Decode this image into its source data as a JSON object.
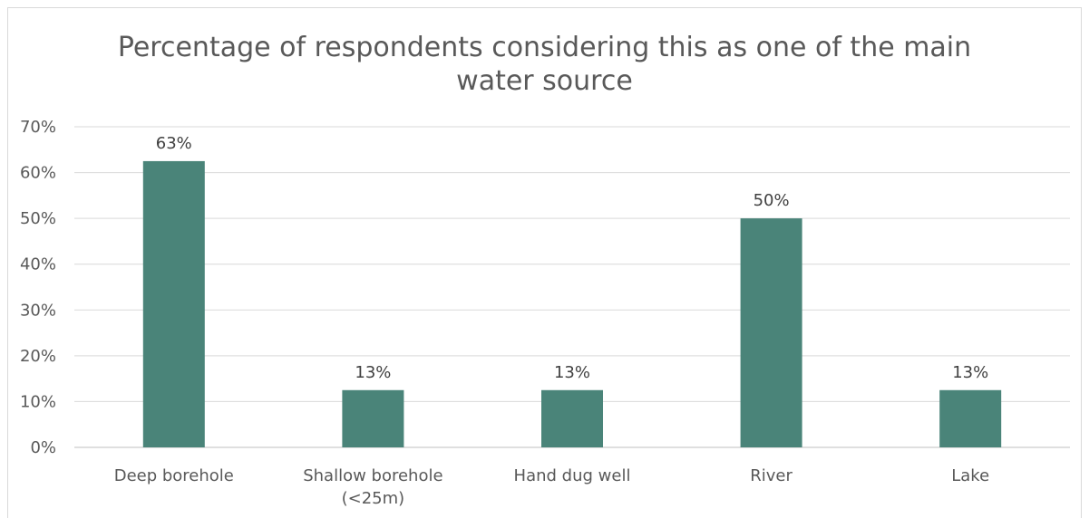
{
  "chart_data": {
    "type": "bar",
    "title": "Percentage of respondents considering this as one of the main\nwater source",
    "categories": [
      "Deep borehole",
      "Shallow borehole\n(<25m)",
      "Hand dug well",
      "River",
      "Lake"
    ],
    "values": [
      62.5,
      12.5,
      12.5,
      50.0,
      12.5
    ],
    "data_labels": [
      "63%",
      "13%",
      "13%",
      "50%",
      "13%"
    ],
    "yticks": [
      "0%",
      "10%",
      "20%",
      "30%",
      "40%",
      "50%",
      "60%",
      "70%"
    ],
    "ylim": [
      0,
      70
    ],
    "xlabel": "",
    "ylabel": "",
    "grid": true,
    "bar_color": "#4a8479"
  }
}
